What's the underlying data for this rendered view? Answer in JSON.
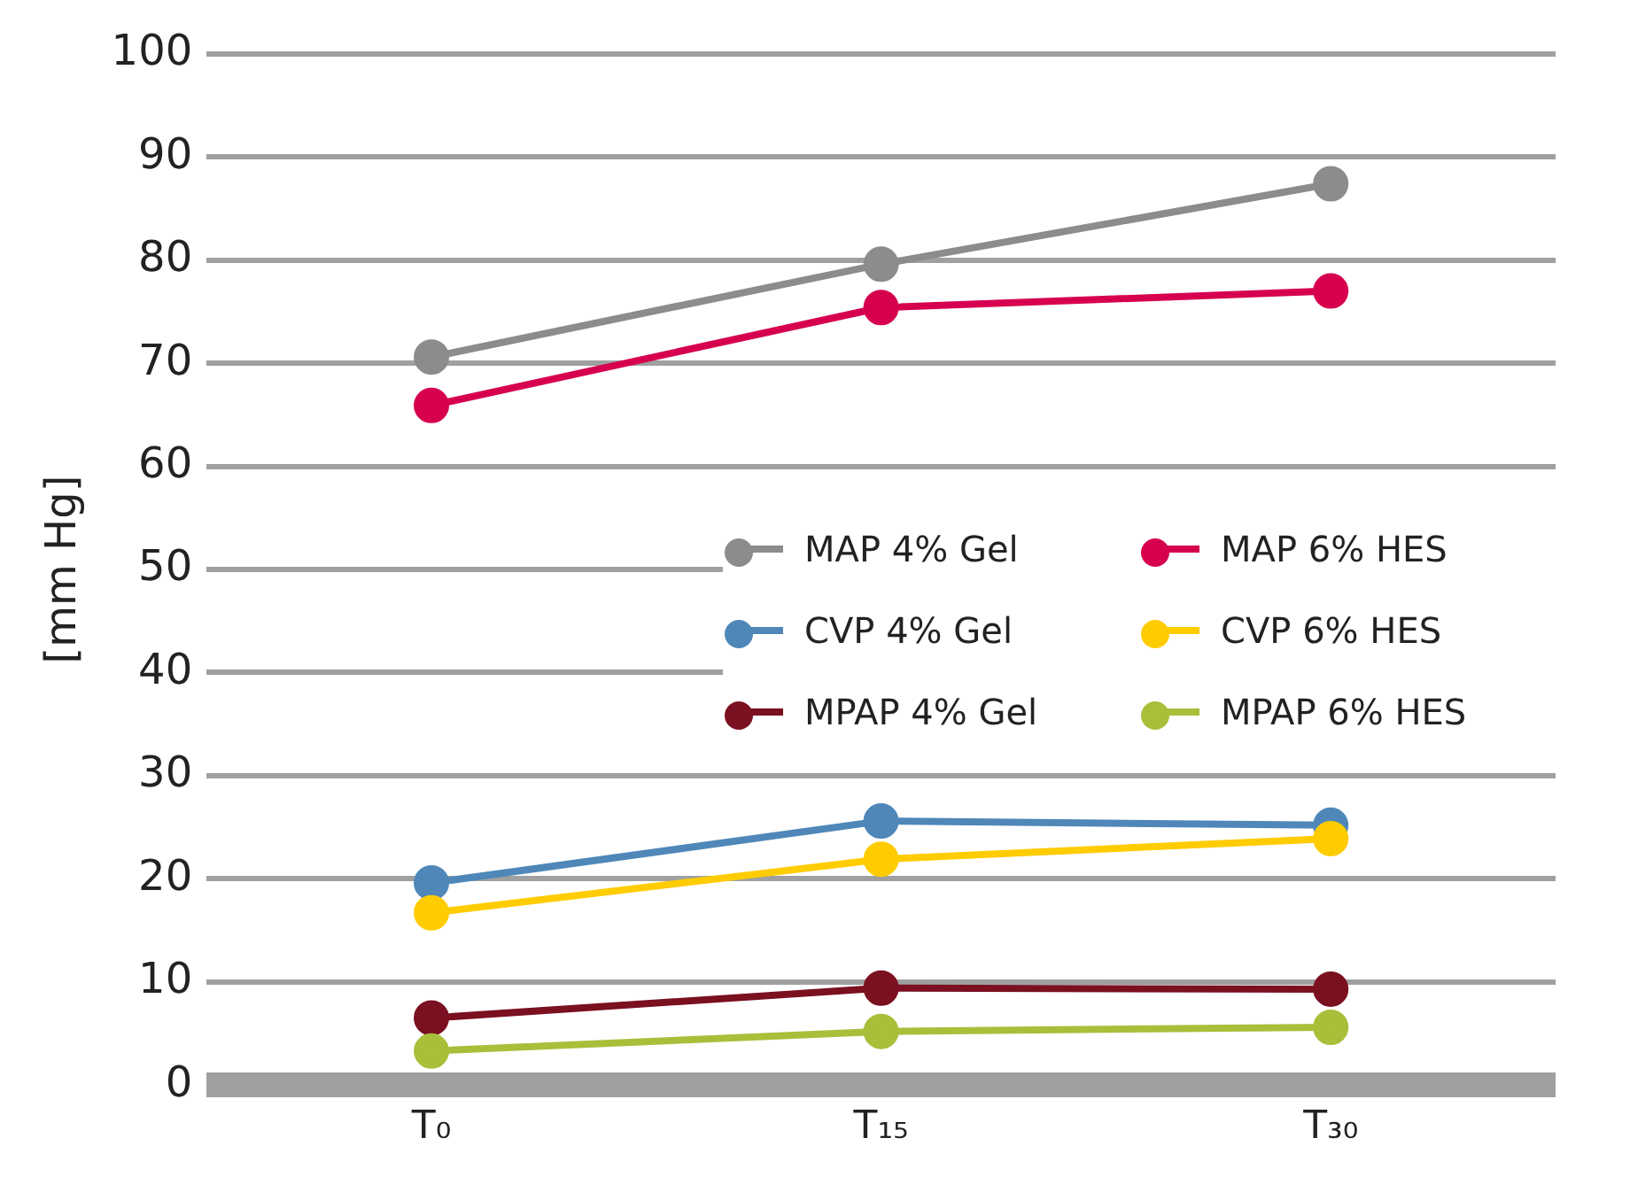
{
  "chart_data": {
    "type": "line",
    "ylabel": "[mm Hg]",
    "categories": [
      "T₀",
      "T₁₅",
      "T₃₀"
    ],
    "series": [
      {
        "name": "MAP 4% Gel",
        "color": "#8c8c8c",
        "values": [
          70.6,
          79.6,
          87.4
        ]
      },
      {
        "name": "MAP 6% HES",
        "color": "#d6004f",
        "values": [
          65.9,
          75.4,
          77.0
        ]
      },
      {
        "name": "CVP 4% Gel",
        "color": "#4f87b8",
        "values": [
          19.6,
          25.6,
          25.2
        ]
      },
      {
        "name": "CVP 6% HES",
        "color": "#ffcc00",
        "values": [
          16.7,
          21.9,
          23.9
        ]
      },
      {
        "name": "MPAP 4% Gel",
        "color": "#7a1020",
        "values": [
          6.5,
          9.4,
          9.3
        ]
      },
      {
        "name": "MPAP 6% HES",
        "color": "#a8bf3a",
        "values": [
          3.3,
          5.2,
          5.6
        ]
      }
    ],
    "ylim": [
      0,
      100
    ],
    "yticks": [
      0,
      10,
      20,
      30,
      40,
      50,
      60,
      70,
      80,
      90,
      100
    ],
    "grid": "y",
    "legend": "right",
    "marker": "circle",
    "line_style": "solid"
  }
}
